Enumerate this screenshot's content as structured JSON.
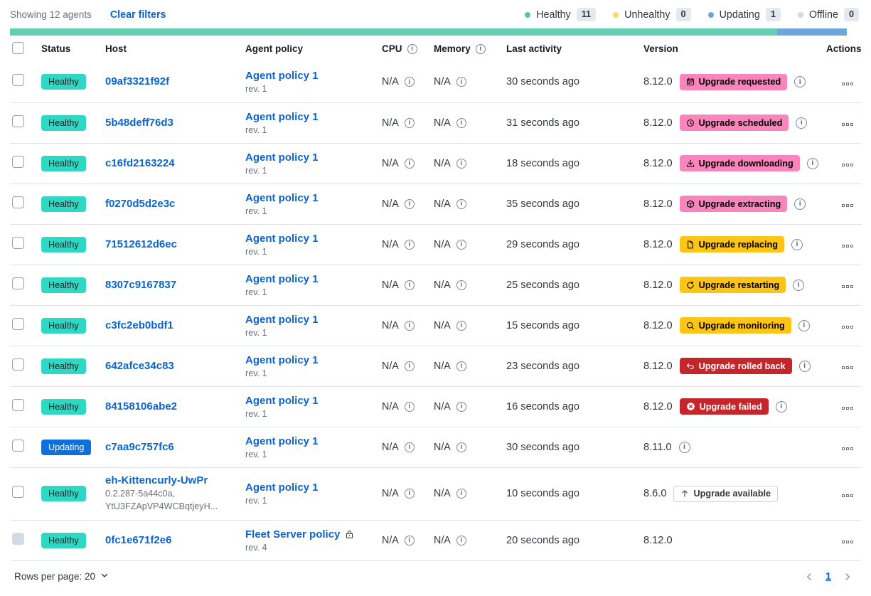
{
  "toolbar": {
    "showing": "Showing 12 agents",
    "clear_filters": "Clear filters"
  },
  "legend": [
    {
      "label": "Healthy",
      "count": "11",
      "color": "#54C8A8"
    },
    {
      "label": "Unhealthy",
      "count": "0",
      "color": "#F1D86F"
    },
    {
      "label": "Updating",
      "count": "1",
      "color": "#6CA6DD"
    },
    {
      "label": "Offline",
      "count": "0",
      "color": "#D3DAE6"
    }
  ],
  "status_bar": [
    {
      "status": "healthy",
      "color": "#62CFB2",
      "fraction": 0.9167
    },
    {
      "status": "updating",
      "color": "#6CA6DD",
      "fraction": 0.0833
    }
  ],
  "colors": {
    "link": "#0B64CC",
    "status_badges": {
      "healthy": {
        "bg": "#2FD8C2",
        "fg": "#1A1C21"
      },
      "updating": {
        "bg": "#0E70DB",
        "fg": "#FFFFFF"
      }
    },
    "upgrade_badges": {
      "pink": {
        "bg": "#F985BC",
        "fg": "#000000"
      },
      "warning": {
        "bg": "#FEC514",
        "fg": "#000000"
      },
      "danger": {
        "bg": "#C4262C",
        "fg": "#FFFFFF"
      },
      "hollow": {
        "bg": "#FFFFFF",
        "fg": "#343741",
        "border": "#CBD3DF"
      }
    }
  },
  "table": {
    "headers": {
      "status": "Status",
      "host": "Host",
      "policy": "Agent policy",
      "cpu": "CPU",
      "memory": "Memory",
      "last_activity": "Last activity",
      "version": "Version",
      "actions": "Actions"
    },
    "rows": [
      {
        "status": "Healthy",
        "status_variant": "healthy",
        "host": "09af3321f92f",
        "policy": "Agent policy 1",
        "rev": "rev. 1",
        "cpu": "N/A",
        "memory": "N/A",
        "last_activity": "30 seconds ago",
        "version": "8.12.0",
        "upgrade": {
          "label": "Upgrade requested",
          "variant": "pink",
          "icon": "calendar-icon"
        },
        "info": true
      },
      {
        "status": "Healthy",
        "status_variant": "healthy",
        "host": "5b48deff76d3",
        "policy": "Agent policy 1",
        "rev": "rev. 1",
        "cpu": "N/A",
        "memory": "N/A",
        "last_activity": "31 seconds ago",
        "version": "8.12.0",
        "upgrade": {
          "label": "Upgrade scheduled",
          "variant": "pink",
          "icon": "clock-icon"
        },
        "info": true
      },
      {
        "status": "Healthy",
        "status_variant": "healthy",
        "host": "c16fd2163224",
        "policy": "Agent policy 1",
        "rev": "rev. 1",
        "cpu": "N/A",
        "memory": "N/A",
        "last_activity": "18 seconds ago",
        "version": "8.12.0",
        "upgrade": {
          "label": "Upgrade downloading",
          "variant": "pink",
          "icon": "download-icon"
        },
        "info": true
      },
      {
        "status": "Healthy",
        "status_variant": "healthy",
        "host": "f0270d5d2e3c",
        "policy": "Agent policy 1",
        "rev": "rev. 1",
        "cpu": "N/A",
        "memory": "N/A",
        "last_activity": "35 seconds ago",
        "version": "8.12.0",
        "upgrade": {
          "label": "Upgrade extracting",
          "variant": "pink",
          "icon": "package-icon"
        },
        "info": true
      },
      {
        "status": "Healthy",
        "status_variant": "healthy",
        "host": "71512612d6ec",
        "policy": "Agent policy 1",
        "rev": "rev. 1",
        "cpu": "N/A",
        "memory": "N/A",
        "last_activity": "29 seconds ago",
        "version": "8.12.0",
        "upgrade": {
          "label": "Upgrade replacing",
          "variant": "warning",
          "icon": "document-icon"
        },
        "info": true
      },
      {
        "status": "Healthy",
        "status_variant": "healthy",
        "host": "8307c9167837",
        "policy": "Agent policy 1",
        "rev": "rev. 1",
        "cpu": "N/A",
        "memory": "N/A",
        "last_activity": "25 seconds ago",
        "version": "8.12.0",
        "upgrade": {
          "label": "Upgrade restarting",
          "variant": "warning",
          "icon": "refresh-icon"
        },
        "info": true
      },
      {
        "status": "Healthy",
        "status_variant": "healthy",
        "host": "c3fc2eb0bdf1",
        "policy": "Agent policy 1",
        "rev": "rev. 1",
        "cpu": "N/A",
        "memory": "N/A",
        "last_activity": "15 seconds ago",
        "version": "8.12.0",
        "upgrade": {
          "label": "Upgrade monitoring",
          "variant": "warning",
          "icon": "inspect-icon"
        },
        "info": true
      },
      {
        "status": "Healthy",
        "status_variant": "healthy",
        "host": "642afce34c83",
        "policy": "Agent policy 1",
        "rev": "rev. 1",
        "cpu": "N/A",
        "memory": "N/A",
        "last_activity": "23 seconds ago",
        "version": "8.12.0",
        "upgrade": {
          "label": "Upgrade rolled back",
          "variant": "danger",
          "icon": "return-icon"
        },
        "info": true
      },
      {
        "status": "Healthy",
        "status_variant": "healthy",
        "host": "84158106abe2",
        "policy": "Agent policy 1",
        "rev": "rev. 1",
        "cpu": "N/A",
        "memory": "N/A",
        "last_activity": "16 seconds ago",
        "version": "8.12.0",
        "upgrade": {
          "label": "Upgrade failed",
          "variant": "danger",
          "icon": "error-icon"
        },
        "info": true
      },
      {
        "status": "Updating",
        "status_variant": "updating",
        "host": "c7aa9c757fc6",
        "policy": "Agent policy 1",
        "rev": "rev. 1",
        "cpu": "N/A",
        "memory": "N/A",
        "last_activity": "30 seconds ago",
        "version": "8.11.0",
        "upgrade": null,
        "info": true
      },
      {
        "status": "Healthy",
        "status_variant": "healthy",
        "host": "eh-Kittencurly-UwPr",
        "host_sub": [
          "0.2.287-5a44c0a,",
          "YtU3FZApVP4WCBqtjeyH..."
        ],
        "policy": "Agent policy 1",
        "rev": "rev. 1",
        "cpu": "N/A",
        "memory": "N/A",
        "last_activity": "10 seconds ago",
        "version": "8.6.0",
        "upgrade": {
          "label": "Upgrade available",
          "variant": "hollow",
          "icon": "arrow-up-icon"
        },
        "info": false,
        "tall": true
      },
      {
        "status": "Healthy",
        "status_variant": "healthy",
        "host": "0fc1e671f2e6",
        "policy": "Fleet Server policy",
        "rev": "rev. 4",
        "policy_locked": true,
        "cpu": "N/A",
        "memory": "N/A",
        "last_activity": "20 seconds ago",
        "version": "8.12.0",
        "upgrade": null,
        "info": false,
        "checkbox_disabled": true
      }
    ]
  },
  "footer": {
    "rows_per_page": "Rows per page: 20",
    "page": "1"
  }
}
